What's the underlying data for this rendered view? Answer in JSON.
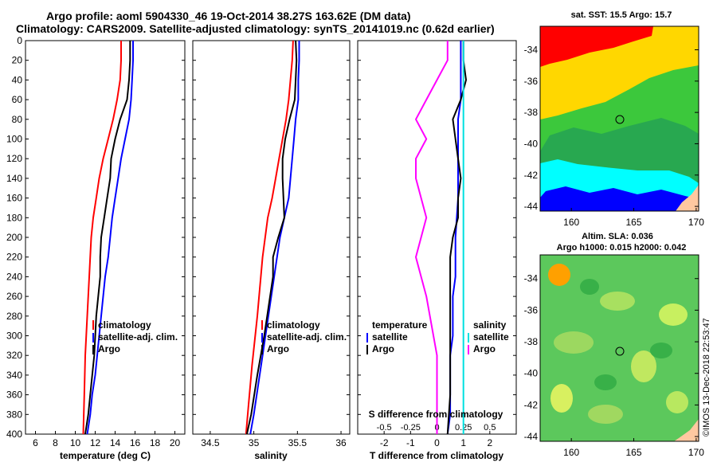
{
  "title": {
    "line1": "Argo profile: aoml 5904330_46 19-Oct-2014 38.27S 163.62E (DM data)",
    "line2": "Climatology: CARS2009. Satellite-adjusted climatology: synTS_20141019.nc (0.62d earlier)"
  },
  "depth_ticks": [
    "0",
    "20",
    "40",
    "60",
    "80",
    "100",
    "120",
    "140",
    "160",
    "180",
    "200",
    "220",
    "240",
    "260",
    "280",
    "300",
    "320",
    "340",
    "360",
    "380",
    "400"
  ],
  "colors": {
    "climatology": "#ff0000",
    "satellite": "#0000ff",
    "argo": "#000000",
    "s_satellite": "#00e0e0",
    "s_argo": "#ff00ff"
  },
  "chart_data": [
    {
      "type": "line",
      "title": "",
      "xlabel": "temperature (deg C)",
      "ylabel": "",
      "xlim": [
        5,
        21
      ],
      "ylim": [
        400,
        0
      ],
      "x_ticks": [
        "6",
        "8",
        "10",
        "12",
        "14",
        "16",
        "18",
        "20"
      ],
      "legend": [
        "climatology",
        "satellite-adj. clim.",
        "Argo"
      ],
      "series": [
        {
          "name": "climatology",
          "x": [
            14.6,
            14.6,
            14.5,
            14.2,
            13.8,
            13.3,
            12.8,
            12.4,
            12.1,
            11.8,
            11.6,
            11.4,
            11.2,
            11.0,
            10.9,
            10.8
          ],
          "y": [
            0,
            20,
            40,
            60,
            80,
            100,
            120,
            140,
            160,
            180,
            200,
            240,
            280,
            320,
            360,
            400
          ]
        },
        {
          "name": "satellite-adj. clim.",
          "x": [
            15.8,
            15.8,
            15.7,
            15.6,
            15.4,
            15.0,
            14.6,
            14.3,
            14.0,
            13.7,
            13.5,
            13.3,
            13.0,
            12.6,
            12.2,
            12.0,
            11.7,
            11.5,
            11.2
          ],
          "y": [
            0,
            20,
            40,
            60,
            80,
            100,
            120,
            140,
            160,
            180,
            200,
            220,
            240,
            280,
            320,
            340,
            360,
            380,
            400
          ]
        },
        {
          "name": "Argo",
          "x": [
            15.5,
            15.5,
            15.4,
            15.2,
            14.5,
            14.0,
            13.6,
            13.5,
            13.2,
            12.9,
            12.6,
            12.5,
            12.5,
            12.1,
            11.9,
            11.6,
            11.3,
            11.0
          ],
          "y": [
            0,
            20,
            40,
            60,
            80,
            100,
            120,
            140,
            160,
            180,
            200,
            220,
            240,
            280,
            320,
            350,
            380,
            400
          ]
        }
      ]
    },
    {
      "type": "line",
      "title": "",
      "xlabel": "salinity",
      "ylabel": "",
      "xlim": [
        34.3,
        36.1
      ],
      "ylim": [
        400,
        0
      ],
      "x_ticks": [
        "34.5",
        "35",
        "35.5",
        "36"
      ],
      "legend": [
        "climatology",
        "satellite-adj. clim.",
        "Argo"
      ],
      "series": [
        {
          "name": "climatology",
          "x": [
            35.45,
            35.44,
            35.42,
            35.4,
            35.37,
            35.33,
            35.29,
            35.25,
            35.21,
            35.16,
            35.1,
            35.04,
            34.98,
            34.94,
            34.91
          ],
          "y": [
            0,
            20,
            40,
            60,
            80,
            100,
            120,
            140,
            160,
            180,
            220,
            280,
            330,
            370,
            400
          ]
        },
        {
          "name": "satellite-adj. clim.",
          "x": [
            35.52,
            35.52,
            35.51,
            35.51,
            35.48,
            35.46,
            35.44,
            35.42,
            35.4,
            35.35,
            35.3,
            35.2,
            35.1,
            35.0,
            34.96
          ],
          "y": [
            0,
            20,
            40,
            60,
            80,
            100,
            120,
            140,
            160,
            180,
            200,
            260,
            320,
            380,
            400
          ]
        },
        {
          "name": "Argo",
          "x": [
            35.48,
            35.49,
            35.48,
            35.47,
            35.41,
            35.36,
            35.33,
            35.33,
            35.34,
            35.35,
            35.28,
            35.22,
            35.22,
            35.17,
            35.12,
            35.04,
            34.97,
            34.92
          ],
          "y": [
            0,
            20,
            40,
            60,
            80,
            100,
            120,
            140,
            160,
            180,
            200,
            220,
            240,
            270,
            300,
            340,
            380,
            400
          ]
        }
      ]
    },
    {
      "type": "line",
      "title": "",
      "xlabel": "T difference from climatology",
      "ylabel": "",
      "x2label": "S difference from climatology",
      "xlim": [
        -3,
        3
      ],
      "ylim": [
        400,
        0
      ],
      "x_ticks": [
        "-2",
        "-1",
        "0",
        "1",
        "2"
      ],
      "x2_ticks": [
        "-0.5",
        "-0.25",
        "0",
        "0.25",
        "0.5"
      ],
      "legend_temperature": {
        "heading": "temperature",
        "items": [
          "satellite",
          "Argo"
        ]
      },
      "legend_salinity": {
        "heading": "salinity",
        "items": [
          "satellite",
          "Argo"
        ]
      },
      "series": [
        {
          "name": "T satellite",
          "x": [
            0.9,
            0.9,
            0.9,
            0.9,
            0.8,
            0.8,
            0.8,
            0.7,
            0.7,
            0.7,
            0.6,
            0.6,
            0.6,
            0.5,
            0.5,
            0.5,
            0.4
          ],
          "y": [
            0,
            20,
            40,
            60,
            80,
            120,
            160,
            200,
            220,
            240,
            260,
            280,
            300,
            320,
            360,
            380,
            400
          ]
        },
        {
          "name": "T Argo",
          "x": [
            1.0,
            1.0,
            1.1,
            0.9,
            0.6,
            0.7,
            0.8,
            0.9,
            0.8,
            0.8,
            0.6,
            0.5,
            0.5,
            0.5,
            0.5,
            0.5,
            0.4
          ],
          "y": [
            0,
            20,
            40,
            60,
            80,
            100,
            120,
            140,
            160,
            180,
            200,
            220,
            240,
            280,
            320,
            360,
            400
          ]
        },
        {
          "name": "S satellite",
          "x": [
            0.25,
            0.25,
            0.25,
            0.25,
            0.25,
            0.25,
            0.25,
            0.25,
            0.25,
            0.25,
            0.25
          ],
          "y": [
            0,
            40,
            80,
            120,
            160,
            200,
            240,
            280,
            320,
            360,
            400
          ]
        },
        {
          "name": "S Argo",
          "x": [
            0.1,
            0.1,
            0.0,
            -0.1,
            -0.2,
            -0.1,
            -0.2,
            -0.2,
            -0.1,
            -0.2,
            -0.1,
            0.0,
            0.0
          ],
          "y": [
            0,
            20,
            40,
            60,
            80,
            100,
            120,
            140,
            180,
            220,
            260,
            320,
            400
          ]
        }
      ]
    }
  ],
  "maps": {
    "sst": {
      "title": "sat. SST: 15.5 Argo: 15.7",
      "lat_ticks": [
        "-34",
        "-36",
        "-38",
        "-40",
        "-42",
        "-44"
      ],
      "lon_ticks": [
        "160",
        "165",
        "170"
      ]
    },
    "sla": {
      "title_line1": "Altim. SLA: 0.036",
      "title_line2": "Argo h1000: 0.015 h2000: 0.042",
      "lat_ticks": [
        "-34",
        "-36",
        "-38",
        "-40",
        "-42",
        "-44"
      ],
      "lon_ticks": [
        "160",
        "165",
        "170"
      ]
    }
  },
  "credit": "©IMOS 13-Dec-2018 22:53:47"
}
